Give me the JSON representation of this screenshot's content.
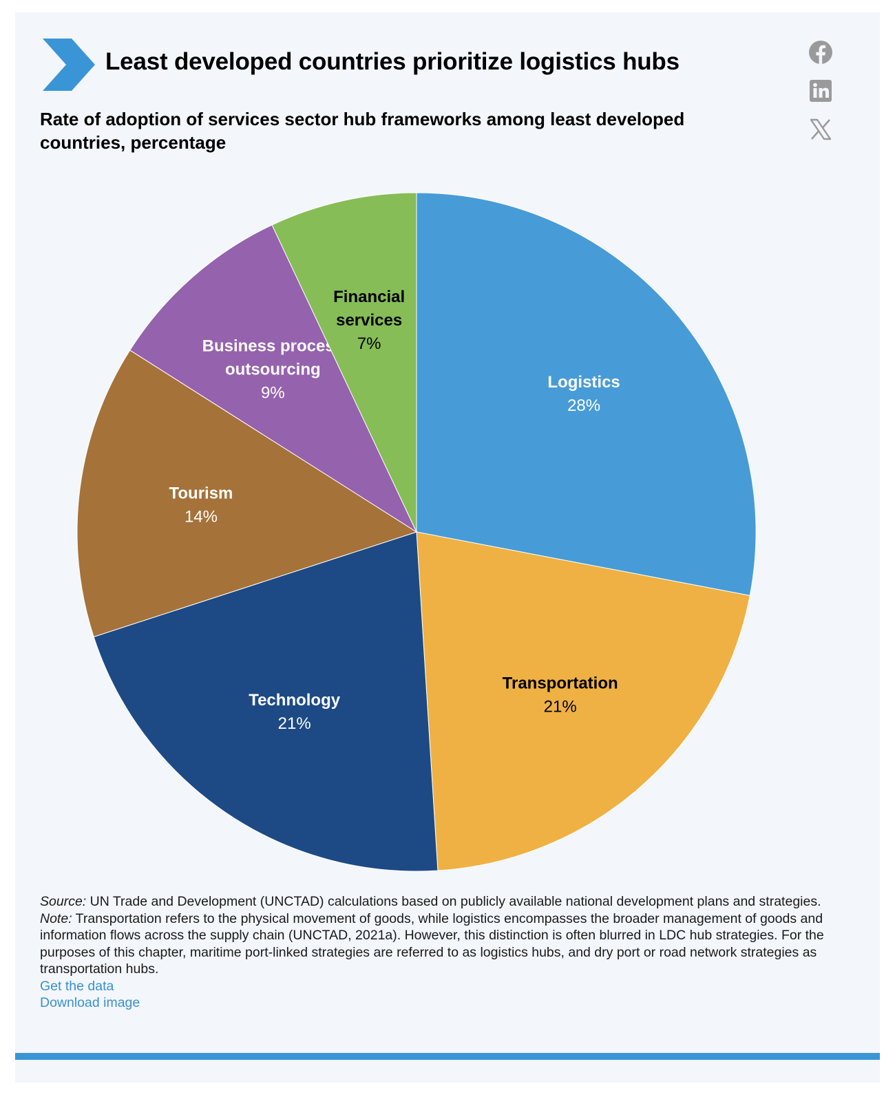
{
  "header": {
    "title": "Least developed countries prioritize logistics hubs",
    "subtitle": "Rate of adoption of services sector hub frameworks among least developed countries, percentage"
  },
  "social": [
    "facebook-icon",
    "linkedin-icon",
    "x-icon"
  ],
  "chart_data": {
    "type": "pie",
    "title": "Rate of adoption of services sector hub frameworks among least developed countries, percentage",
    "start": "12 o'clock, clockwise",
    "slices": [
      {
        "label_lines": [
          "Logistics"
        ],
        "value": 28,
        "value_label": "28%",
        "color": "#479cd7",
        "text_color": "#ffffff"
      },
      {
        "label_lines": [
          "Transportation"
        ],
        "value": 21,
        "value_label": "21%",
        "color": "#efb143",
        "text_color": "#000000"
      },
      {
        "label_lines": [
          "Technology"
        ],
        "value": 21,
        "value_label": "21%",
        "color": "#1d4a85",
        "text_color": "#ffffff"
      },
      {
        "label_lines": [
          "Tourism"
        ],
        "value": 14,
        "value_label": "14%",
        "color": "#a57239",
        "text_color": "#ffffff"
      },
      {
        "label_lines": [
          "Business process",
          "outsourcing"
        ],
        "value": 9,
        "value_label": "9%",
        "color": "#9562ae",
        "text_color": "#ffffff"
      },
      {
        "label_lines": [
          "Financial",
          "services"
        ],
        "value": 7,
        "value_label": "7%",
        "color": "#86bd57",
        "text_color": "#000000"
      }
    ]
  },
  "footer": {
    "source_prefix": "Source:",
    "source_text": " UN Trade and Development (UNCTAD) calculations based on publicly available national development plans and strategies.",
    "note_prefix": "Note:",
    "note_text": " Transportation refers to the physical movement of goods, while logistics encompasses the broader management of goods and information flows across the supply chain (UNCTAD, 2021a). However, this distinction is often blurred in LDC hub strategies. For the purposes of this chapter, maritime port-linked strategies are referred to as logistics hubs, and dry port or road network strategies as transportation hubs.",
    "get_data": "Get the data",
    "download_image": "Download image"
  },
  "colors": {
    "accent": "#3a95d6",
    "background": "#f3f6fb",
    "link": "#3a8fd0",
    "icon": "#9a9a9a"
  }
}
